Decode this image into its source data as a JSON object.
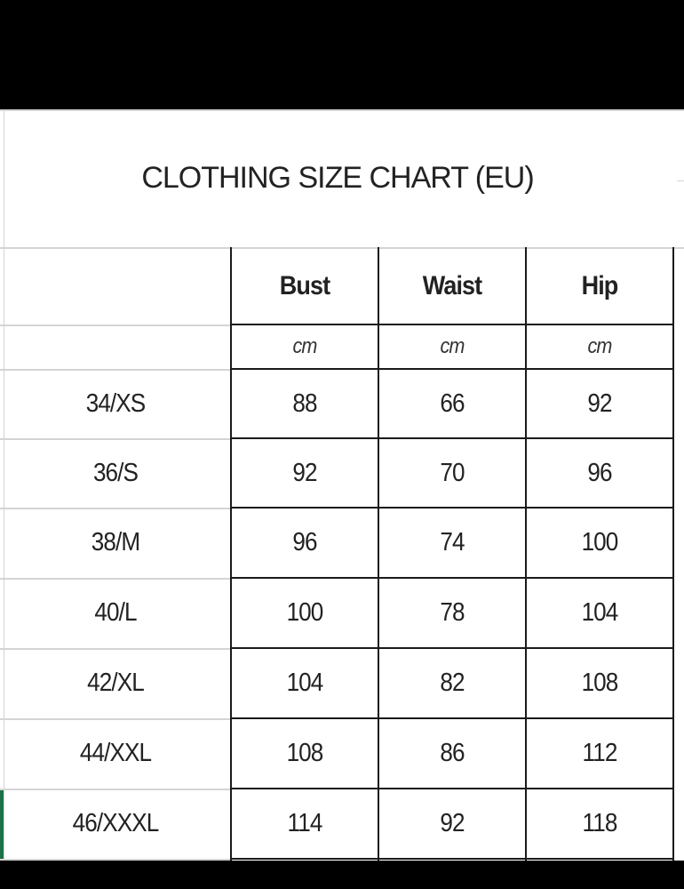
{
  "title": "CLOTHING SIZE CHART (EU)",
  "columns": [
    "Bust",
    "Waist",
    "Hip"
  ],
  "units": [
    "cm",
    "cm",
    "cm"
  ],
  "rows": [
    {
      "size": "34/XS",
      "values": [
        "88",
        "66",
        "92"
      ]
    },
    {
      "size": "36/S",
      "values": [
        "92",
        "70",
        "96"
      ]
    },
    {
      "size": "38/M",
      "values": [
        "96",
        "74",
        "100"
      ]
    },
    {
      "size": "40/L",
      "values": [
        "100",
        "78",
        "104"
      ]
    },
    {
      "size": "42/XL",
      "values": [
        "104",
        "82",
        "108"
      ]
    },
    {
      "size": "44/XXL",
      "values": [
        "108",
        "86",
        "112"
      ]
    },
    {
      "size": "46/XXXL",
      "values": [
        "114",
        "92",
        "118"
      ]
    }
  ],
  "selection_color": "#1e7145"
}
